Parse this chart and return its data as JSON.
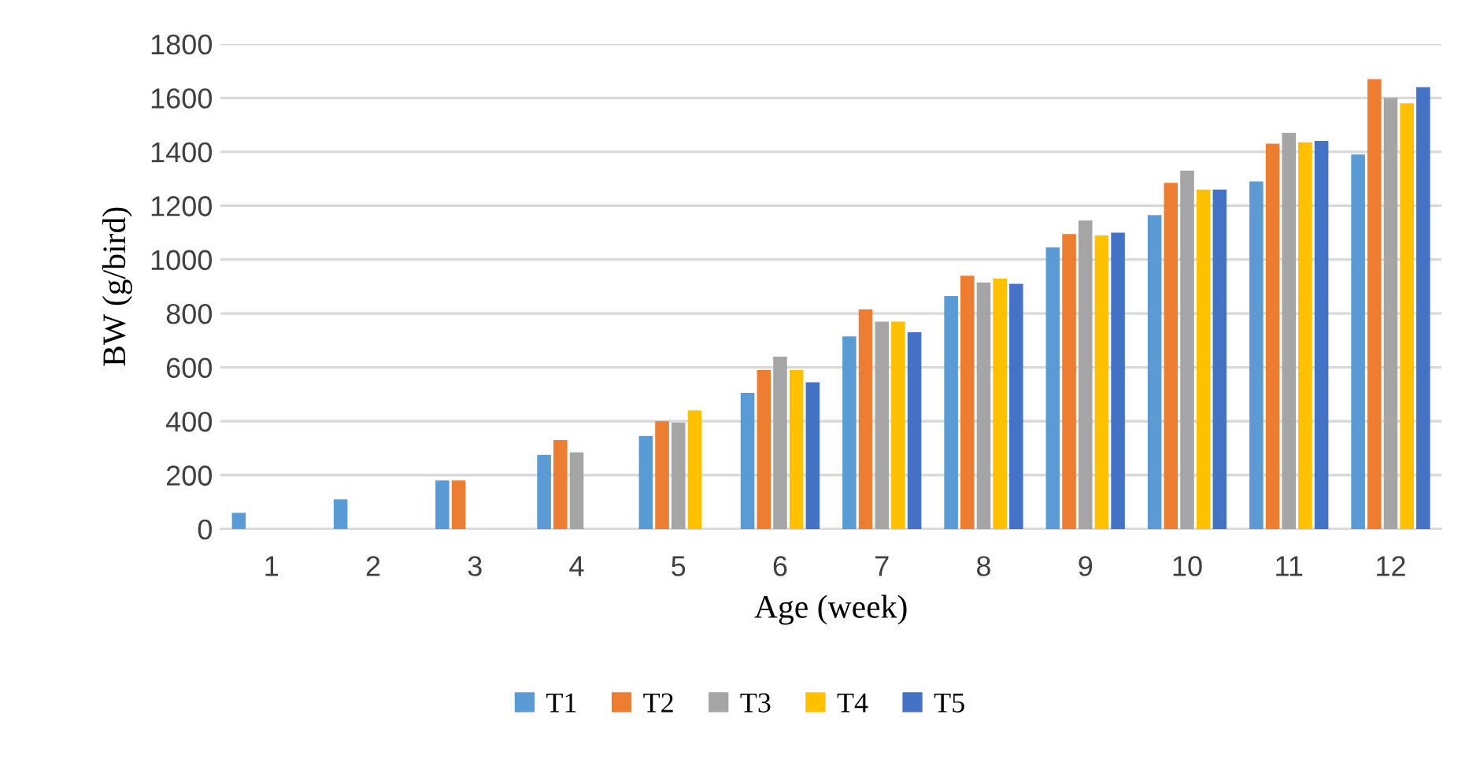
{
  "chart_data": {
    "type": "bar",
    "xlabel": "Age (week)",
    "ylabel": "BW (g/bird)",
    "categories": [
      "1",
      "2",
      "3",
      "4",
      "5",
      "6",
      "7",
      "8",
      "9",
      "10",
      "11",
      "12"
    ],
    "series": [
      {
        "name": "T1",
        "color": "#5b9bd5",
        "values": [
          60,
          110,
          180,
          275,
          345,
          505,
          715,
          865,
          1045,
          1165,
          1290,
          1390
        ]
      },
      {
        "name": "T2",
        "color": "#ed7d31",
        "values": [
          null,
          null,
          180,
          330,
          400,
          590,
          815,
          940,
          1095,
          1285,
          1430,
          1670
        ]
      },
      {
        "name": "T3",
        "color": "#a5a5a5",
        "values": [
          null,
          null,
          null,
          285,
          395,
          640,
          770,
          915,
          1145,
          1330,
          1470,
          1600
        ]
      },
      {
        "name": "T4",
        "color": "#ffc000",
        "values": [
          null,
          null,
          null,
          null,
          440,
          590,
          770,
          930,
          1090,
          1260,
          1435,
          1580
        ]
      },
      {
        "name": "T5",
        "color": "#4472c4",
        "values": [
          null,
          null,
          null,
          null,
          null,
          545,
          730,
          910,
          1100,
          1260,
          1440,
          1640
        ]
      }
    ],
    "ylim": [
      0,
      1800
    ],
    "yticks": [
      0,
      200,
      400,
      600,
      800,
      1000,
      1200,
      1400,
      1600,
      1800
    ],
    "grid": "y",
    "legend": "bottom"
  }
}
